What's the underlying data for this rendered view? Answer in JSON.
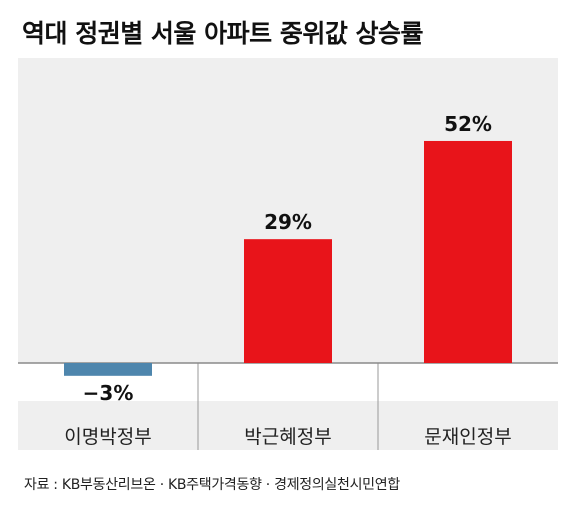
{
  "chart_data": {
    "type": "bar",
    "title": "역대 정권별 서울 아파트 중위값 상승률",
    "categories": [
      "이명박정부",
      "박근혜정부",
      "문재인정부"
    ],
    "values": [
      -3,
      29,
      52
    ],
    "value_labels": [
      "−3%",
      "29%",
      "52%"
    ],
    "ylim": [
      -3,
      52
    ],
    "grid": false,
    "colors": {
      "positive": "#e8141a",
      "negative": "#4e86ad",
      "background": "#efefef"
    }
  },
  "source": "자료 : KB부동산리브온 · KB주택가격동향 · 경제정의실천시민연합"
}
